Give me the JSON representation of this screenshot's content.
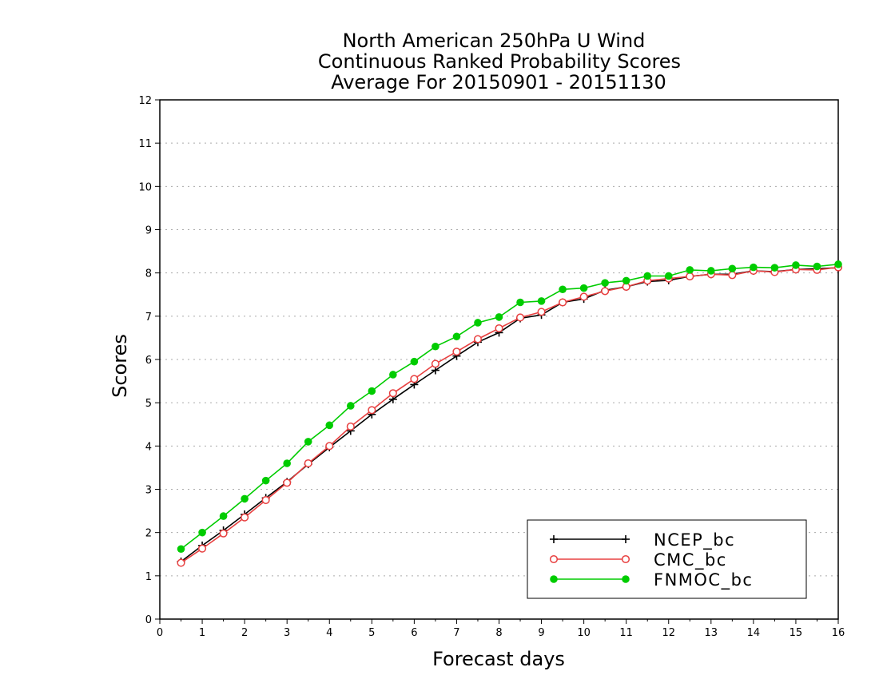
{
  "chart_data": {
    "type": "line",
    "title_lines": [
      "North American 250hPa U Wind",
      "Continuous Ranked Probability Scores",
      "Average For 20150901 - 20151130"
    ],
    "xlabel": "Forecast days",
    "ylabel": "Scores",
    "xlim": [
      0,
      16
    ],
    "ylim": [
      0,
      12
    ],
    "xticks": [
      "0",
      "1",
      "2",
      "3",
      "4",
      "5",
      "6",
      "7",
      "8",
      "9",
      "10",
      "11",
      "12",
      "13",
      "14",
      "15",
      "16"
    ],
    "yticks": [
      "0",
      "1",
      "2",
      "3",
      "4",
      "5",
      "6",
      "7",
      "8",
      "9",
      "10",
      "11",
      "12"
    ],
    "grid": "horizontal dotted",
    "legend_position": "bottom-right",
    "x": [
      0.5,
      1,
      1.5,
      2,
      2.5,
      3,
      3.5,
      4,
      4.5,
      5,
      5.5,
      6,
      6.5,
      7,
      7.5,
      8,
      8.5,
      9,
      9.5,
      10,
      10.5,
      11,
      11.5,
      12,
      12.5,
      13,
      13.5,
      14,
      14.5,
      15,
      15.5,
      16
    ],
    "series": [
      {
        "name": "NCEP_bc",
        "color": "#000000",
        "marker": "plus",
        "values": [
          1.33,
          1.7,
          2.05,
          2.42,
          2.8,
          3.17,
          3.58,
          3.97,
          4.35,
          4.73,
          5.08,
          5.42,
          5.75,
          6.08,
          6.4,
          6.62,
          6.95,
          7.03,
          7.32,
          7.4,
          7.6,
          7.68,
          7.8,
          7.83,
          7.92,
          7.97,
          7.97,
          8.05,
          8.03,
          8.08,
          8.1,
          8.12
        ]
      },
      {
        "name": "CMC_bc",
        "color": "#e84040",
        "marker": "open-circle",
        "values": [
          1.3,
          1.63,
          1.98,
          2.35,
          2.75,
          3.15,
          3.6,
          4.0,
          4.45,
          4.83,
          5.22,
          5.55,
          5.9,
          6.18,
          6.47,
          6.72,
          6.97,
          7.1,
          7.32,
          7.45,
          7.58,
          7.68,
          7.82,
          7.87,
          7.92,
          7.97,
          7.95,
          8.05,
          8.02,
          8.08,
          8.07,
          8.13
        ]
      },
      {
        "name": "FNMOC_bc",
        "color": "#00cc00",
        "marker": "filled-circle",
        "values": [
          1.62,
          2.0,
          2.38,
          2.78,
          3.2,
          3.6,
          4.1,
          4.48,
          4.93,
          5.27,
          5.65,
          5.95,
          6.3,
          6.53,
          6.85,
          6.98,
          7.32,
          7.35,
          7.62,
          7.65,
          7.77,
          7.82,
          7.93,
          7.93,
          8.07,
          8.05,
          8.1,
          8.13,
          8.12,
          8.18,
          8.15,
          8.2
        ]
      }
    ]
  }
}
